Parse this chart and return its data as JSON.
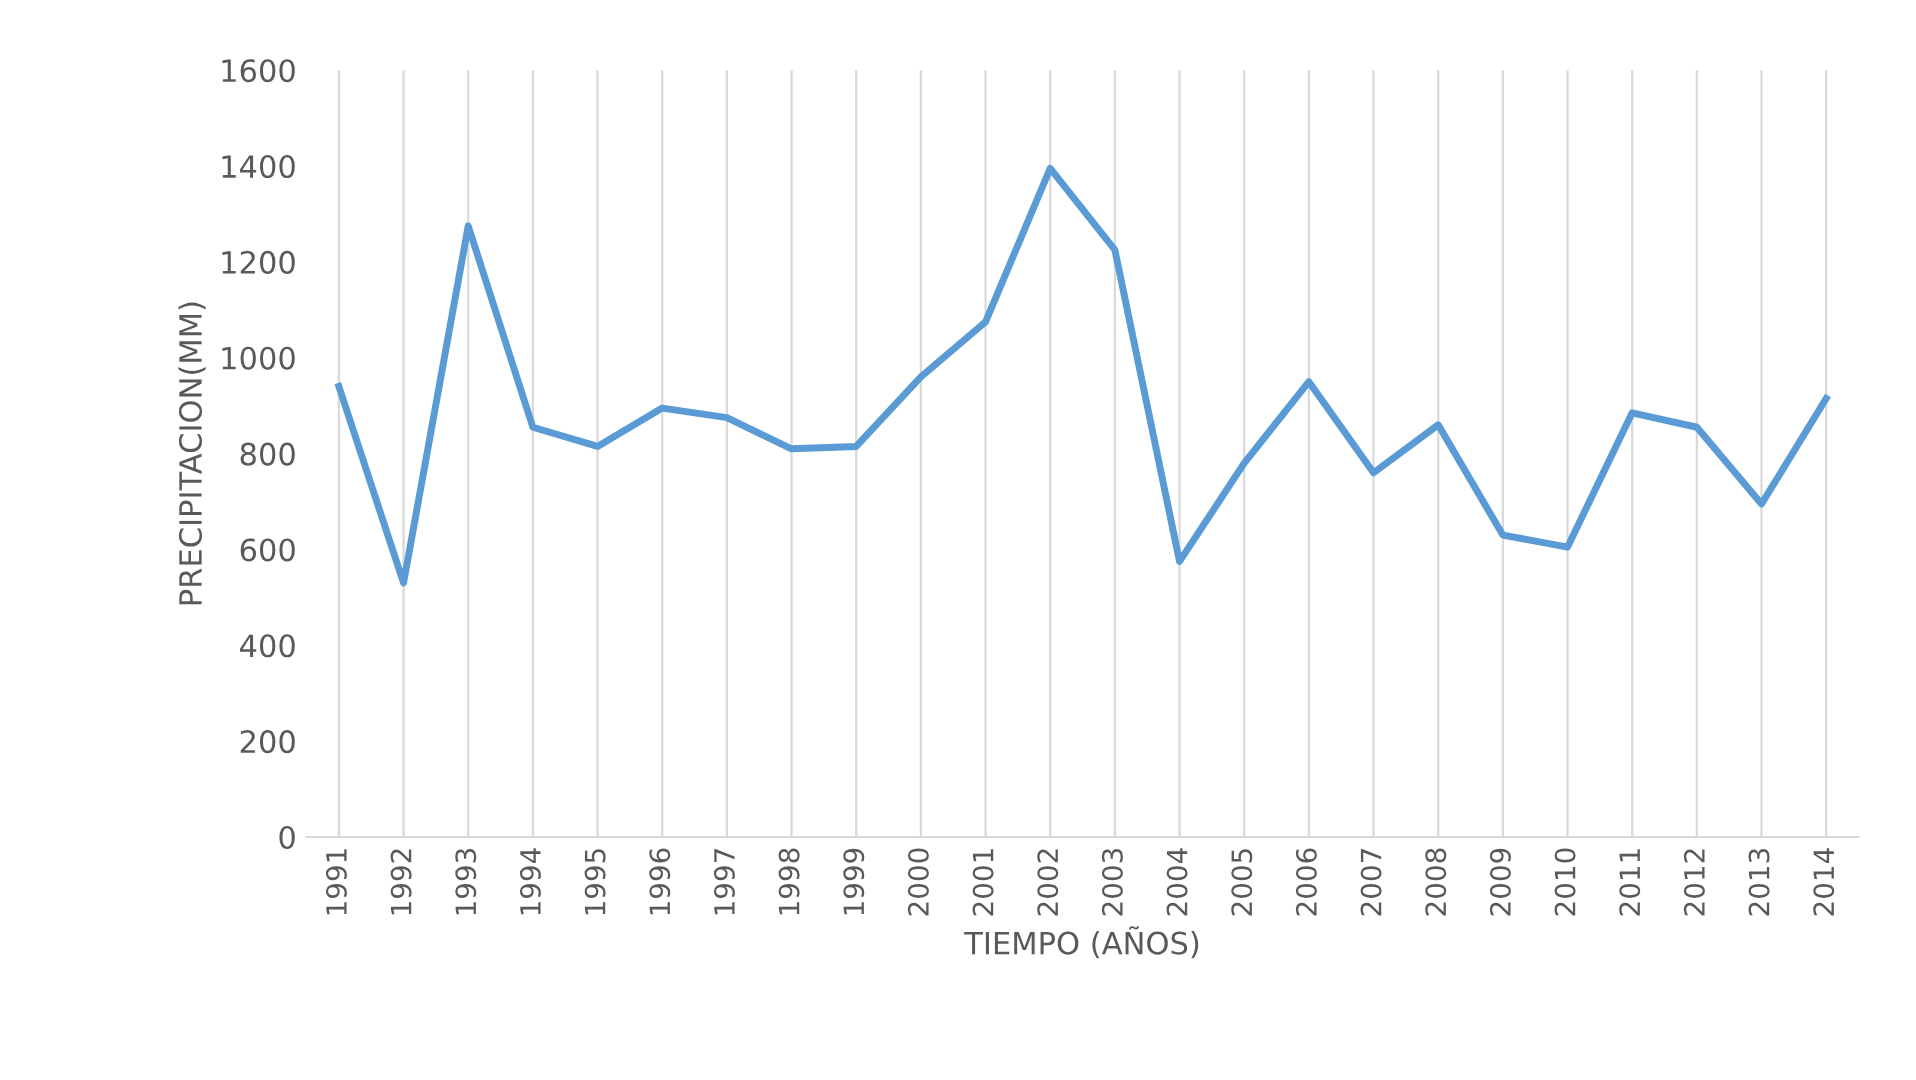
{
  "chart_data": {
    "type": "line",
    "xlabel": "TIEMPO (AÑOS)",
    "ylabel": "PRECIPITACION(MM)",
    "categories": [
      "1991",
      "1992",
      "1993",
      "1994",
      "1995",
      "1996",
      "1997",
      "1998",
      "1999",
      "2000",
      "2001",
      "2002",
      "2003",
      "2004",
      "2005",
      "2006",
      "2007",
      "2008",
      "2009",
      "2010",
      "2011",
      "2012",
      "2013",
      "2014"
    ],
    "series": [
      {
        "color": "#5b9bd5",
        "values": [
          940,
          530,
          1275,
          855,
          815,
          895,
          875,
          810,
          815,
          960,
          1075,
          1395,
          1225,
          575,
          780,
          950,
          760,
          860,
          630,
          605,
          885,
          855,
          695,
          915
        ]
      }
    ],
    "ylim": [
      0,
      1600
    ],
    "yticks": [
      0,
      200,
      400,
      600,
      800,
      1000,
      1200,
      1400,
      1600
    ],
    "grid": "x",
    "legend": false,
    "marker": "none",
    "line_style": "solid"
  }
}
